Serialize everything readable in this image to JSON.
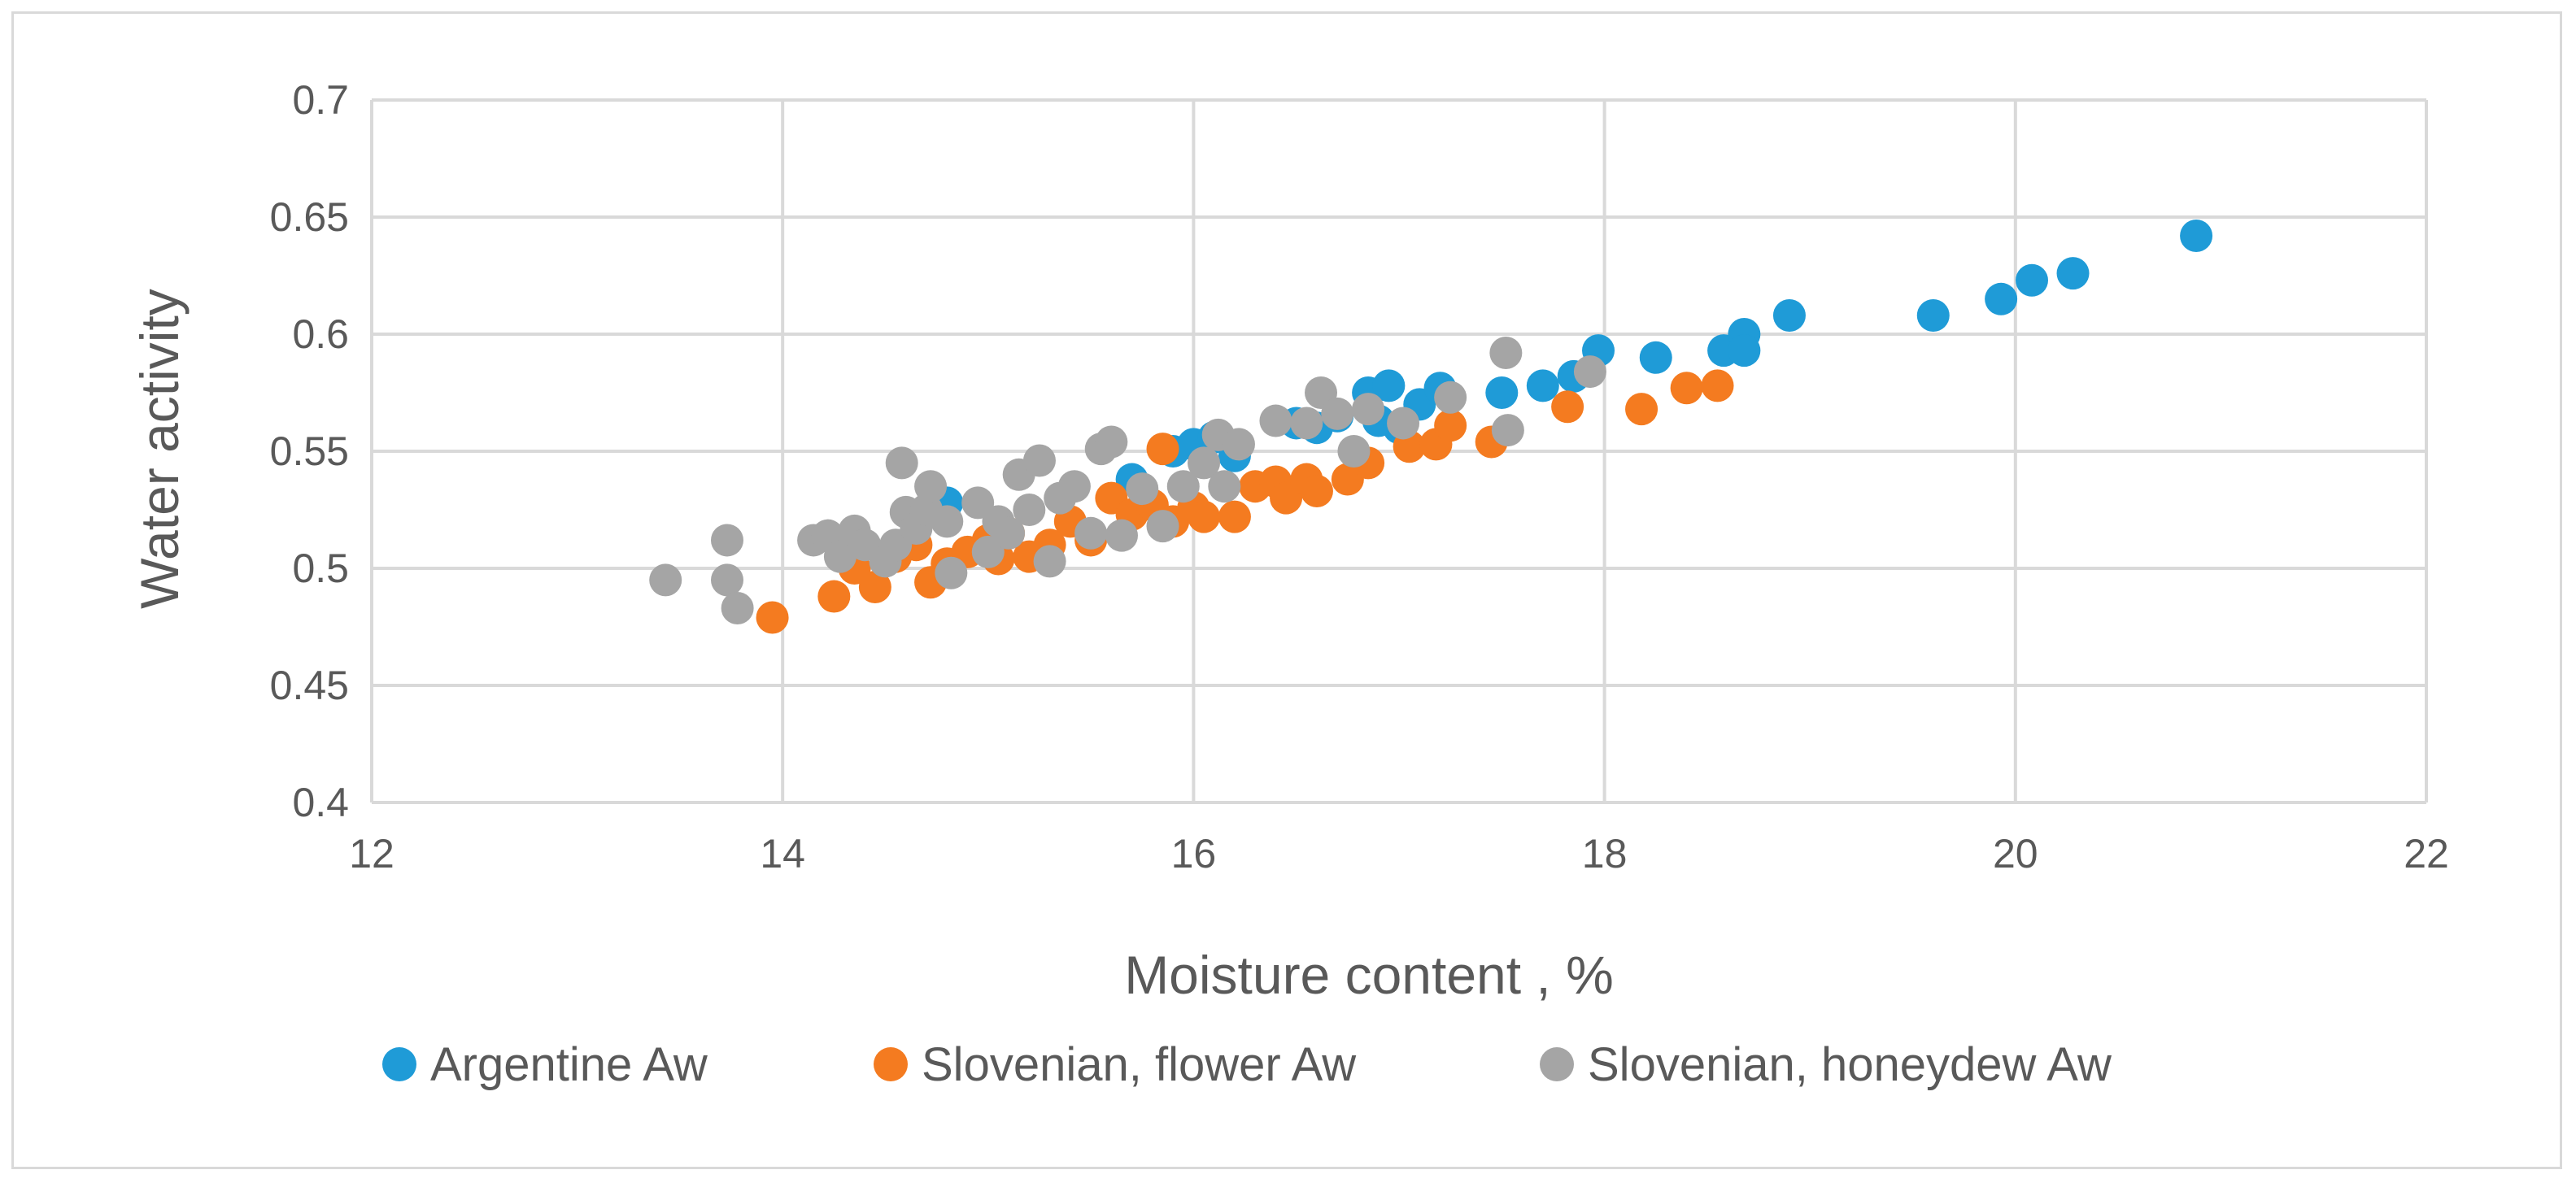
{
  "chart_data": {
    "type": "scatter",
    "title": "",
    "xlabel": "Moisture content , %",
    "ylabel": "Water activity",
    "xlim": [
      12,
      22
    ],
    "ylim": [
      0.4,
      0.7
    ],
    "xticks": [
      12,
      14,
      16,
      18,
      20,
      22
    ],
    "xtick_labels": [
      "12",
      "14",
      "16",
      "18",
      "20",
      "22"
    ],
    "yticks": [
      0.4,
      0.45,
      0.5,
      0.55,
      0.6,
      0.65,
      0.7
    ],
    "ytick_labels": [
      "0.4",
      "0.45",
      "0.5",
      "0.55",
      "0.6",
      "0.65",
      "0.7"
    ],
    "grid": true,
    "legend_position": "bottom",
    "series": [
      {
        "name": "Argentine Aw",
        "color": "#1f9bd7",
        "points": [
          [
            14.8,
            0.528
          ],
          [
            15.7,
            0.538
          ],
          [
            15.9,
            0.55
          ],
          [
            16.0,
            0.553
          ],
          [
            16.1,
            0.556
          ],
          [
            16.2,
            0.548
          ],
          [
            16.5,
            0.562
          ],
          [
            16.6,
            0.56
          ],
          [
            16.7,
            0.565
          ],
          [
            16.85,
            0.575
          ],
          [
            16.9,
            0.563
          ],
          [
            16.95,
            0.578
          ],
          [
            17.0,
            0.56
          ],
          [
            17.1,
            0.57
          ],
          [
            17.2,
            0.577
          ],
          [
            17.5,
            0.575
          ],
          [
            17.7,
            0.578
          ],
          [
            17.85,
            0.582
          ],
          [
            17.97,
            0.593
          ],
          [
            18.25,
            0.59
          ],
          [
            18.58,
            0.593
          ],
          [
            18.68,
            0.6
          ],
          [
            18.68,
            0.593
          ],
          [
            18.9,
            0.608
          ],
          [
            19.6,
            0.608
          ],
          [
            19.93,
            0.615
          ],
          [
            20.08,
            0.623
          ],
          [
            20.28,
            0.626
          ],
          [
            20.88,
            0.642
          ]
        ]
      },
      {
        "name": "Slovenian, flower Aw",
        "color": "#f47b20",
        "points": [
          [
            13.95,
            0.479
          ],
          [
            14.25,
            0.488
          ],
          [
            14.35,
            0.5
          ],
          [
            14.45,
            0.492
          ],
          [
            14.55,
            0.505
          ],
          [
            14.65,
            0.51
          ],
          [
            14.72,
            0.494
          ],
          [
            14.8,
            0.502
          ],
          [
            14.9,
            0.507
          ],
          [
            15.0,
            0.512
          ],
          [
            15.05,
            0.504
          ],
          [
            15.1,
            0.515
          ],
          [
            15.2,
            0.505
          ],
          [
            15.3,
            0.51
          ],
          [
            15.4,
            0.52
          ],
          [
            15.5,
            0.512
          ],
          [
            15.6,
            0.53
          ],
          [
            15.7,
            0.523
          ],
          [
            15.8,
            0.527
          ],
          [
            15.85,
            0.551
          ],
          [
            15.9,
            0.52
          ],
          [
            16.0,
            0.526
          ],
          [
            16.05,
            0.522
          ],
          [
            16.2,
            0.522
          ],
          [
            16.3,
            0.535
          ],
          [
            16.4,
            0.537
          ],
          [
            16.45,
            0.53
          ],
          [
            16.55,
            0.538
          ],
          [
            16.6,
            0.533
          ],
          [
            16.75,
            0.538
          ],
          [
            16.85,
            0.545
          ],
          [
            17.05,
            0.552
          ],
          [
            17.18,
            0.553
          ],
          [
            17.25,
            0.561
          ],
          [
            17.45,
            0.554
          ],
          [
            17.82,
            0.569
          ],
          [
            18.18,
            0.568
          ],
          [
            18.4,
            0.577
          ],
          [
            18.55,
            0.578
          ]
        ]
      },
      {
        "name": "Slovenian, honeydew Aw",
        "color": "#a5a5a5",
        "points": [
          [
            13.43,
            0.495
          ],
          [
            13.73,
            0.512
          ],
          [
            13.73,
            0.495
          ],
          [
            13.78,
            0.483
          ],
          [
            14.15,
            0.512
          ],
          [
            14.22,
            0.514
          ],
          [
            14.28,
            0.505
          ],
          [
            14.35,
            0.516
          ],
          [
            14.4,
            0.51
          ],
          [
            14.5,
            0.503
          ],
          [
            14.55,
            0.51
          ],
          [
            14.58,
            0.545
          ],
          [
            14.6,
            0.524
          ],
          [
            14.65,
            0.517
          ],
          [
            14.7,
            0.525
          ],
          [
            14.72,
            0.535
          ],
          [
            14.8,
            0.52
          ],
          [
            14.82,
            0.498
          ],
          [
            14.95,
            0.528
          ],
          [
            15.0,
            0.507
          ],
          [
            15.05,
            0.52
          ],
          [
            15.1,
            0.515
          ],
          [
            15.15,
            0.54
          ],
          [
            15.2,
            0.525
          ],
          [
            15.25,
            0.546
          ],
          [
            15.3,
            0.503
          ],
          [
            15.35,
            0.53
          ],
          [
            15.42,
            0.535
          ],
          [
            15.5,
            0.515
          ],
          [
            15.55,
            0.551
          ],
          [
            15.6,
            0.554
          ],
          [
            15.65,
            0.514
          ],
          [
            15.75,
            0.534
          ],
          [
            15.85,
            0.518
          ],
          [
            15.95,
            0.535
          ],
          [
            16.05,
            0.545
          ],
          [
            16.12,
            0.557
          ],
          [
            16.15,
            0.535
          ],
          [
            16.22,
            0.553
          ],
          [
            16.4,
            0.563
          ],
          [
            16.55,
            0.562
          ],
          [
            16.62,
            0.575
          ],
          [
            16.7,
            0.566
          ],
          [
            16.78,
            0.55
          ],
          [
            16.85,
            0.568
          ],
          [
            17.02,
            0.562
          ],
          [
            17.25,
            0.573
          ],
          [
            17.52,
            0.592
          ],
          [
            17.53,
            0.559
          ],
          [
            17.93,
            0.584
          ]
        ]
      }
    ]
  }
}
